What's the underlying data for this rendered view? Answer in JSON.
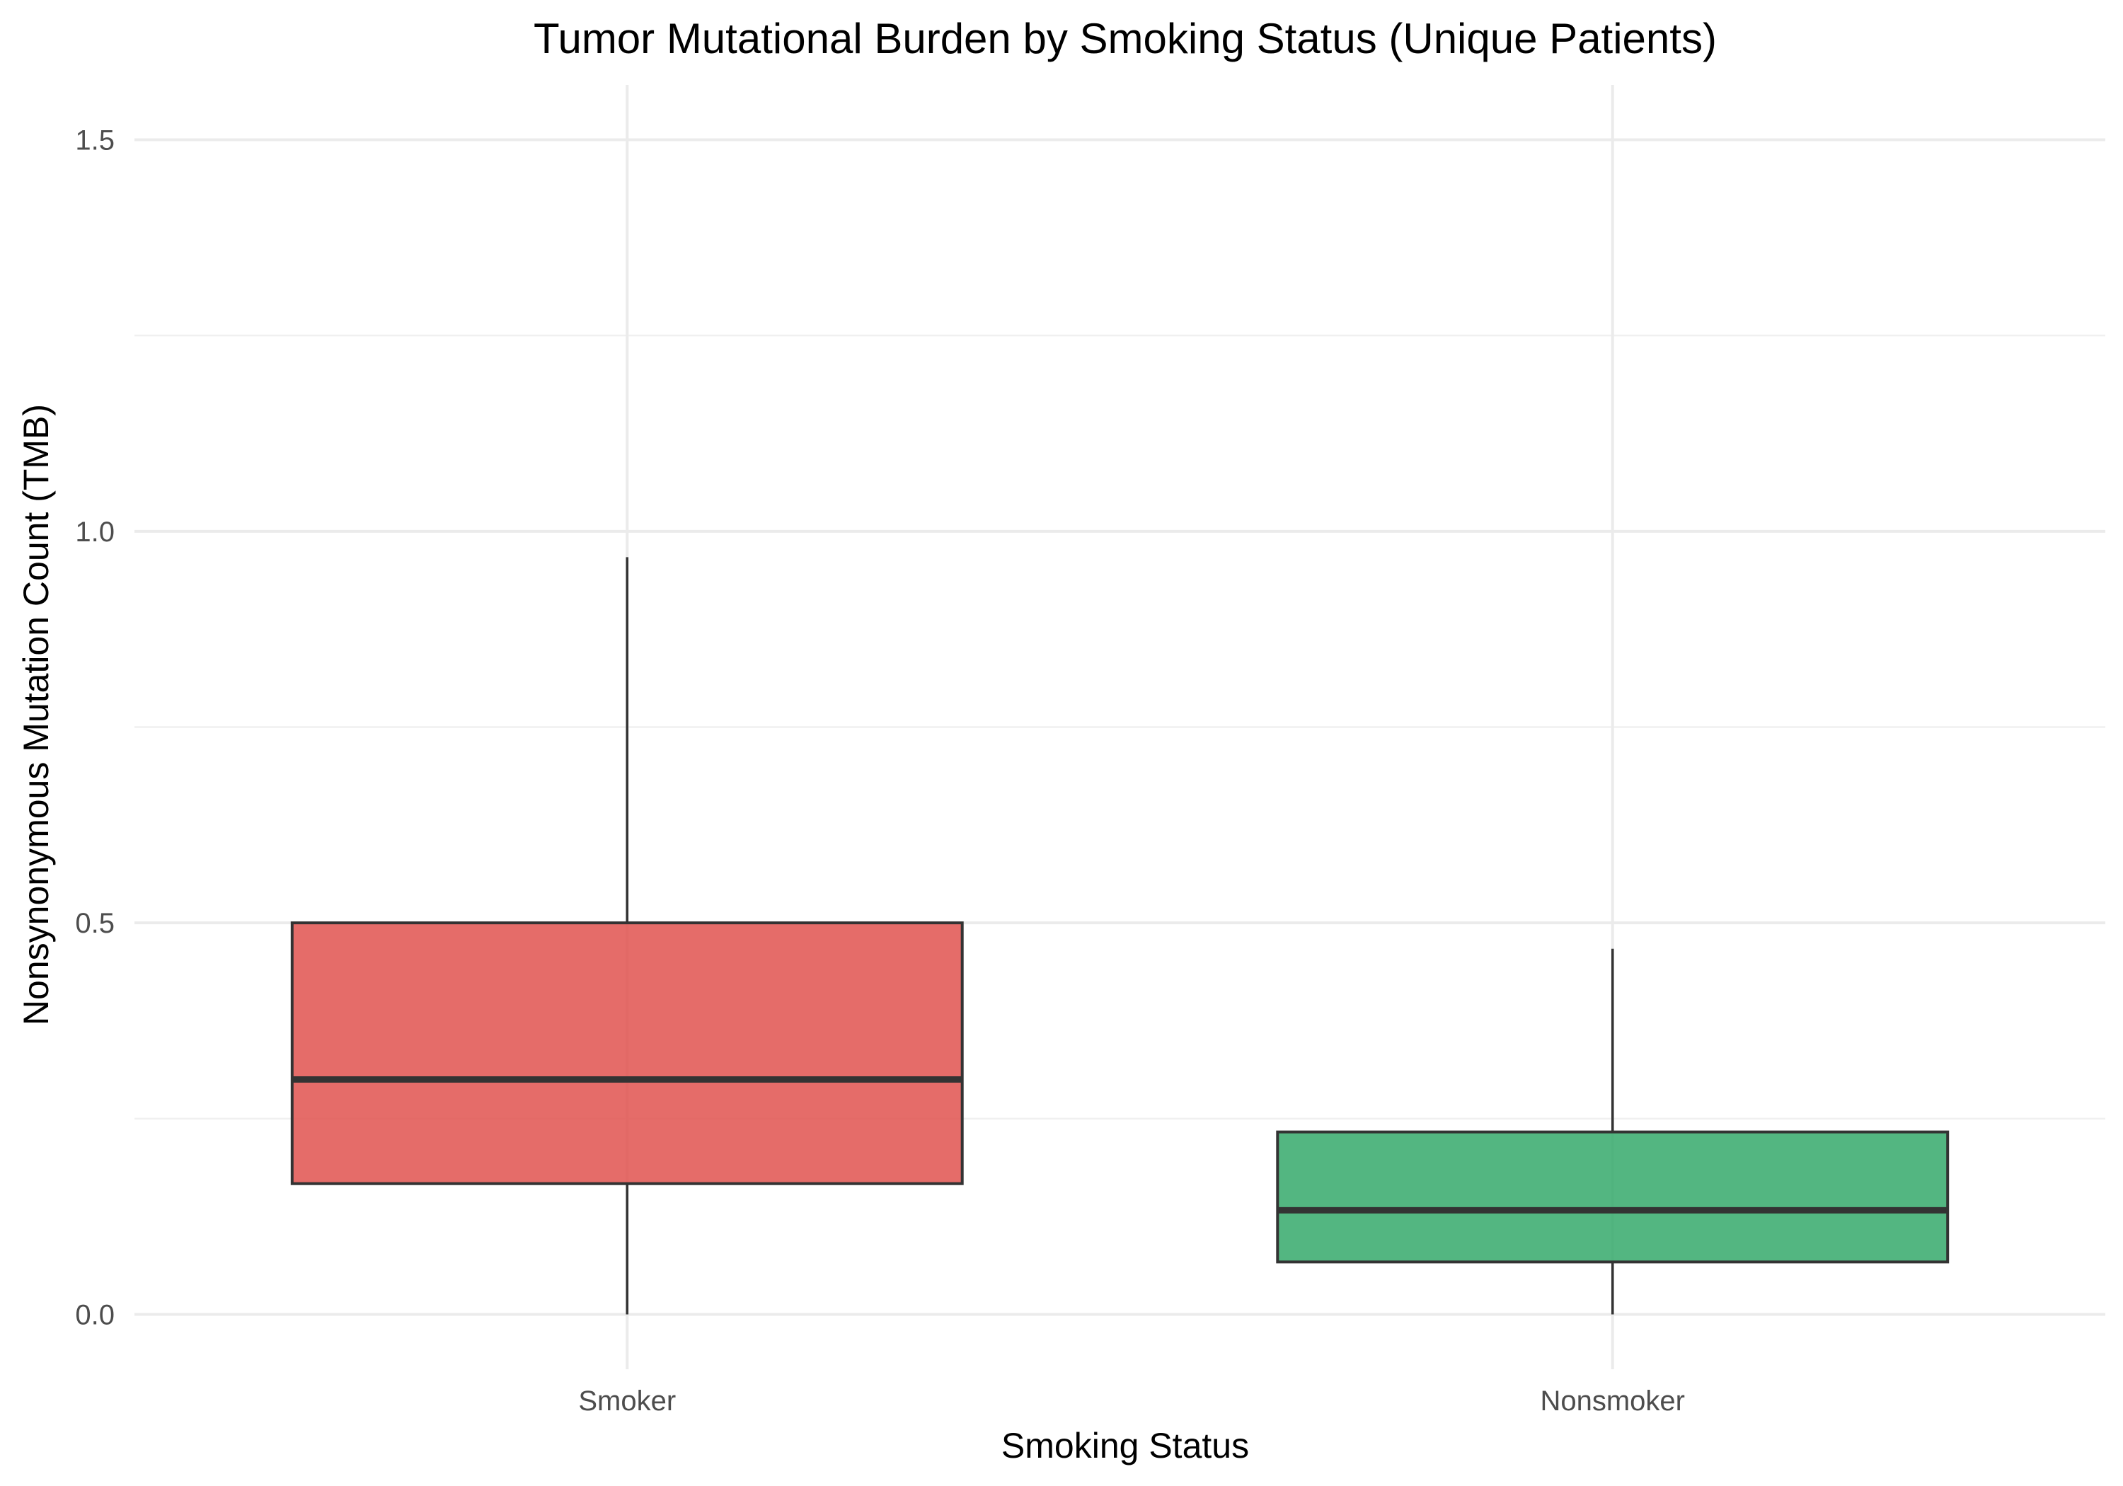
{
  "chart_data": {
    "type": "boxplot",
    "title": "Tumor Mutational Burden by Smoking Status (Unique Patients)",
    "xlabel": "Smoking Status",
    "ylabel": "Nonsynonymous Mutation Count (TMB)",
    "ylim": [
      -0.07,
      1.57
    ],
    "y_ticks": [
      {
        "value": 0.0,
        "label": "0.0"
      },
      {
        "value": 0.5,
        "label": "0.5"
      },
      {
        "value": 1.0,
        "label": "1.0"
      },
      {
        "value": 1.5,
        "label": "1.5"
      }
    ],
    "y_minor_ticks": [
      0.25,
      0.75,
      1.25
    ],
    "grid": true,
    "legend": "none",
    "categories": [
      "Smoker",
      "Nonsmoker"
    ],
    "boxes": [
      {
        "category": "Smoker",
        "whisker_low": 0.0,
        "q1": 0.167,
        "median": 0.3,
        "q3": 0.5,
        "whisker_high": 0.967,
        "color": "#e0524f"
      },
      {
        "category": "Nonsmoker",
        "whisker_low": 0.0,
        "q1": 0.067,
        "median": 0.133,
        "q3": 0.233,
        "whisker_high": 0.467,
        "color": "#35a96b"
      }
    ]
  }
}
